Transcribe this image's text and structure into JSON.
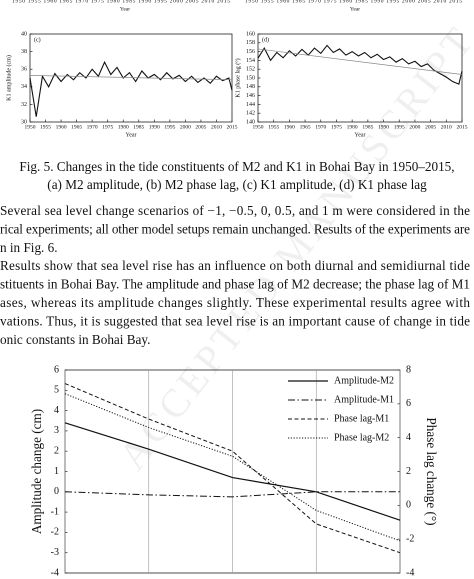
{
  "top_strip": {
    "labels": [
      "1950 1955 1960 1965 1970 1975 1980 1985 1990 1995 2000 2005 2010 2015",
      "1950 1955 1960 1965 1970 1975 1980 1985 1990 1995 2000 2005 2010 2015"
    ],
    "x_labels": [
      "Year",
      "Year"
    ]
  },
  "figure_c": {
    "type": "line",
    "panel": "(c)",
    "xlabel": "Year",
    "ylabel": "K1 amplitude (cm)",
    "xlim": [
      1950,
      2015
    ],
    "xticks": [
      1950,
      1955,
      1960,
      1965,
      1970,
      1975,
      1980,
      1985,
      1990,
      1995,
      2000,
      2005,
      2010,
      2015
    ],
    "ylim": [
      30,
      40
    ],
    "yticks": [
      30,
      32,
      34,
      36,
      38,
      40
    ],
    "series": [
      {
        "color": "#111111",
        "style": "solid",
        "width": 1.1,
        "x": [
          1950,
          1952,
          1954,
          1956,
          1958,
          1960,
          1962,
          1964,
          1966,
          1968,
          1970,
          1972,
          1974,
          1976,
          1978,
          1980,
          1982,
          1984,
          1986,
          1988,
          1990,
          1992,
          1994,
          1996,
          1998,
          2000,
          2002,
          2004,
          2006,
          2008,
          2010,
          2012,
          2014,
          2015
        ],
        "values": [
          35.0,
          30.6,
          35.2,
          34.0,
          35.5,
          34.6,
          35.4,
          34.8,
          35.6,
          35.0,
          36.0,
          35.2,
          36.8,
          35.4,
          36.2,
          35.0,
          35.6,
          34.6,
          35.8,
          35.0,
          35.4,
          34.8,
          35.6,
          34.9,
          35.3,
          34.6,
          35.2,
          34.5,
          35.0,
          34.4,
          35.2,
          34.7,
          35.0,
          33.6
        ]
      },
      {
        "color": "#888888",
        "style": "solid",
        "width": 0.7,
        "x": [
          1950,
          2015
        ],
        "values": [
          35.3,
          34.8
        ]
      }
    ]
  },
  "figure_d": {
    "type": "line",
    "panel": "(d)",
    "xlabel": "Year",
    "ylabel": "K1 phase lag (°)",
    "xlim": [
      1950,
      2015
    ],
    "xticks": [
      1950,
      1955,
      1960,
      1965,
      1970,
      1975,
      1980,
      1985,
      1990,
      1995,
      2000,
      2005,
      2010,
      2015
    ],
    "ylim": [
      140,
      160
    ],
    "yticks": [
      140,
      142,
      144,
      146,
      148,
      150,
      152,
      154,
      156,
      158,
      160
    ],
    "series": [
      {
        "color": "#111111",
        "style": "solid",
        "width": 1.1,
        "x": [
          1950,
          1952,
          1954,
          1956,
          1958,
          1960,
          1962,
          1964,
          1966,
          1968,
          1970,
          1972,
          1974,
          1976,
          1978,
          1980,
          1982,
          1984,
          1986,
          1988,
          1990,
          1992,
          1994,
          1996,
          1998,
          2000,
          2002,
          2004,
          2006,
          2008,
          2010,
          2012,
          2014,
          2015
        ],
        "values": [
          154.5,
          156.8,
          154.0,
          155.8,
          154.6,
          156.2,
          155.0,
          156.5,
          155.2,
          156.8,
          155.6,
          157.4,
          155.8,
          156.6,
          155.2,
          156.0,
          155.0,
          155.8,
          154.6,
          155.4,
          154.2,
          154.8,
          153.6,
          154.4,
          153.2,
          153.8,
          152.6,
          153.2,
          151.8,
          151.0,
          150.2,
          149.2,
          148.6,
          151.6
        ]
      },
      {
        "color": "#888888",
        "style": "solid",
        "width": 0.7,
        "x": [
          1950,
          2015
        ],
        "values": [
          156.6,
          150.8
        ]
      }
    ]
  },
  "caption": [
    "Fig. 5. Changes in the tide constituents of M2 and K1 in Bohai Bay in 1950–2015,",
    "(a) M2 amplitude, (b) M2 phase lag, (c) K1 amplitude, (d) K1 phase lag"
  ],
  "paragraphs": [
    [
      "Several sea level change scenarios of −1, −0.5, 0, 0.5, and 1 m were considered in the",
      "rical experiments; all other model setups remain unchanged. Results of the experiments are",
      "n in Fig. 6."
    ],
    [
      "Results show that sea level rise has an influence on both diurnal and semidiurnal tide",
      "stituents in Bohai Bay. The amplitude and phase lag of M2 decrease; the phase lag of M1",
      "ases, whereas its amplitude changes slightly. These experimental results agree with",
      "vations. Thus, it is suggested that sea level rise is an important cause of change in tide",
      "onic constants in Bohai Bay."
    ]
  ],
  "watermark": "ACCEPTED MANUSCRIPT",
  "figure_6": {
    "type": "line",
    "ylabel": "Amplitude change (cm)",
    "y2label": "Phase lag change (°)",
    "categories": [
      null,
      null,
      null,
      null,
      null
    ],
    "ylim": [
      -4,
      6
    ],
    "yticks": [
      -4,
      -3,
      -2,
      -1,
      0,
      1,
      2,
      3,
      4,
      5,
      6
    ],
    "y2lim": [
      -4,
      8
    ],
    "y2ticks": [
      -4,
      -2,
      0,
      2,
      4,
      6,
      8
    ],
    "series": [
      {
        "name": "Amplitude-M2",
        "color": "#111111",
        "style": "solid",
        "width": 1.2,
        "values": [
          3.4,
          2.1,
          0.7,
          0.0,
          -1.4
        ]
      },
      {
        "name": "Amplitude-M1",
        "color": "#111111",
        "style": "dashdot",
        "width": 1,
        "values": [
          0.0,
          -0.15,
          -0.25,
          0.0,
          0.0
        ]
      },
      {
        "name": "Phase lag-M1",
        "color": "#111111",
        "style": "dashed",
        "width": 1,
        "axis": "y2",
        "values": [
          7.2,
          5.1,
          3.2,
          -1.1,
          -2.8
        ]
      },
      {
        "name": "Phase lag-M2",
        "color": "#111111",
        "style": "dotted",
        "width": 1,
        "axis": "y2",
        "values": [
          6.6,
          4.6,
          2.9,
          -0.3,
          -2.1
        ]
      }
    ]
  }
}
